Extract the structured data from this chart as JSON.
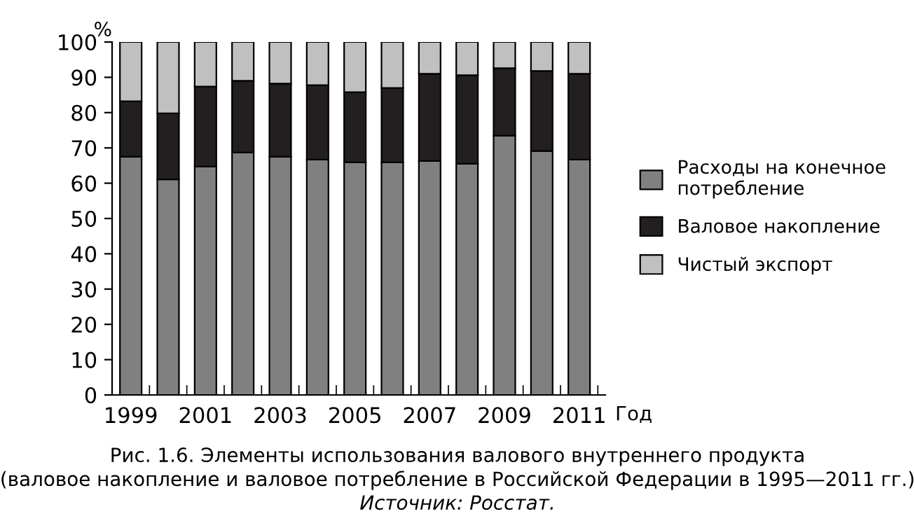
{
  "chart_data": {
    "type": "bar",
    "stacked": true,
    "title": "Рис. 1.6. Элементы использования валового внутреннего продукта",
    "subtitle": "(валовое накопление и валовое потребление в Российской Федерации в 1995—2011 гг.)",
    "annotations": [
      "Источник: Росстат."
    ],
    "ylabel": "%",
    "xlabel": "Год",
    "categories": [
      "1999",
      null,
      "2001",
      null,
      "2003",
      null,
      "2005",
      null,
      "2007",
      null,
      "2009",
      null,
      "2011"
    ],
    "series": [
      {
        "name": "Расходы на конечное потребление",
        "color": "#808080",
        "values": [
          67.5,
          61.1,
          64.7,
          68.7,
          67.5,
          66.7,
          65.9,
          65.9,
          66.3,
          65.5,
          73.5,
          69.1,
          66.7
        ]
      },
      {
        "name": "Валовое накопление",
        "color": "#231f20",
        "values": [
          15.7,
          18.7,
          22.7,
          20.3,
          20.7,
          21.1,
          19.9,
          21.1,
          24.7,
          25.1,
          19.1,
          22.7,
          24.3
        ]
      },
      {
        "name": "Чистый экспорт",
        "color": "#c0c0c0",
        "values": [
          16.8,
          20.2,
          12.6,
          11.0,
          11.8,
          12.2,
          14.2,
          13.0,
          9.0,
          9.4,
          7.4,
          8.2,
          9.0
        ]
      }
    ],
    "ylim": [
      0,
      100
    ],
    "yticks": [
      0,
      10,
      20,
      30,
      40,
      50,
      60,
      70,
      80,
      90,
      100
    ],
    "grid": false,
    "legend": "right"
  }
}
